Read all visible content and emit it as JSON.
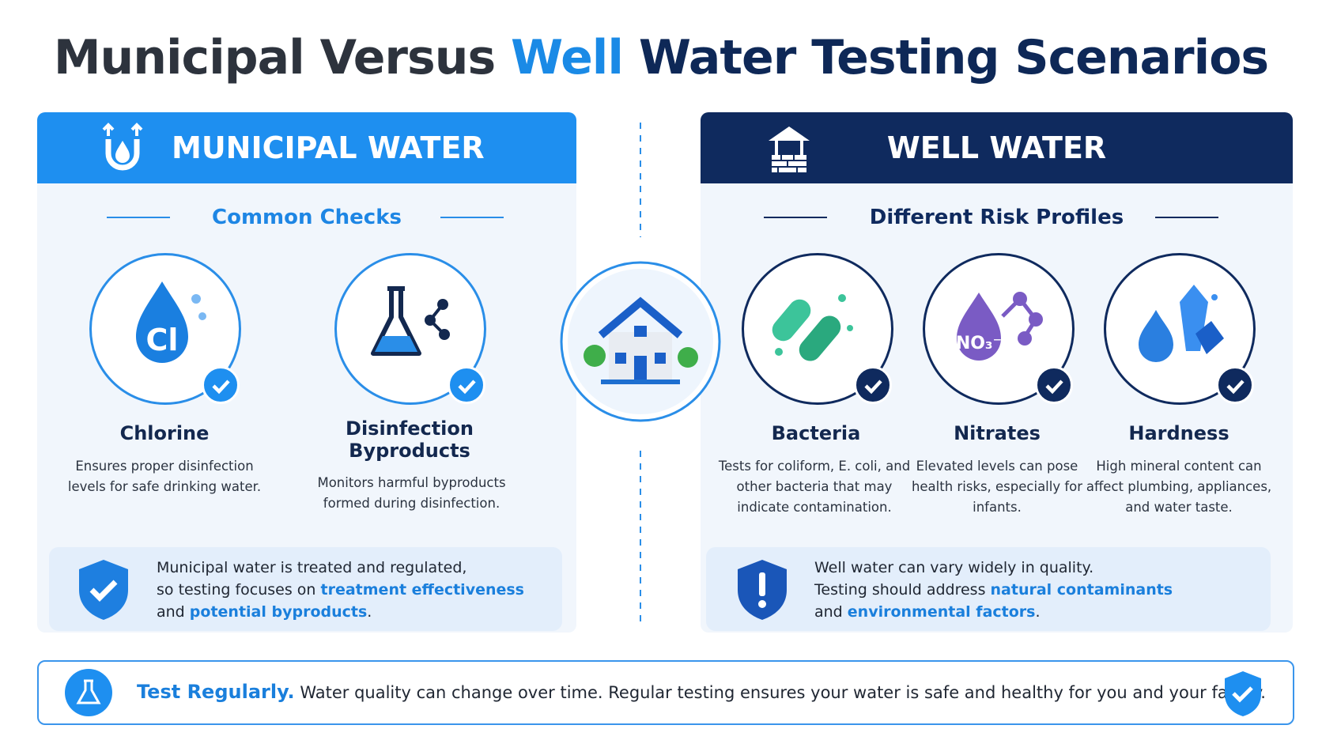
{
  "title": {
    "part1": "Municipal Versus",
    "part2": "Well",
    "part3": "Water Testing Scenarios"
  },
  "municipal": {
    "header": "MUNICIPAL WATER",
    "subtitle": "Common Checks",
    "items": [
      {
        "icon_text": "Cl",
        "name": "Chlorine",
        "desc": "Ensures proper disinfection levels for safe drinking water."
      },
      {
        "name": "Disinfection Byproducts",
        "desc": "Monitors harmful byproducts formed during disinfection."
      }
    ],
    "note": [
      "Municipal water is treated and regulated,",
      "so testing focuses on",
      "treatment effectiveness",
      "and",
      "potential byproducts",
      "."
    ]
  },
  "well": {
    "header": "WELL WATER",
    "subtitle": "Different Risk Profiles",
    "items": [
      {
        "name": "Bacteria",
        "desc": "Tests for coliform, E. coli, and other bacteria that may indicate contamination."
      },
      {
        "icon_text": "NO₃⁻",
        "name": "Nitrates",
        "desc": "Elevated levels can pose health risks, especially for infants."
      },
      {
        "name": "Hardness",
        "desc": "High mineral content can affect plumbing, appliances, and water taste."
      }
    ],
    "note": [
      "Well water can vary widely in quality.",
      "Testing should address",
      "natural contaminants",
      "and",
      "environmental factors",
      "."
    ]
  },
  "footer": {
    "lead": "Test Regularly.",
    "text": "Water quality can change over time. Regular testing ensures your water is safe and healthy for you and your family."
  }
}
